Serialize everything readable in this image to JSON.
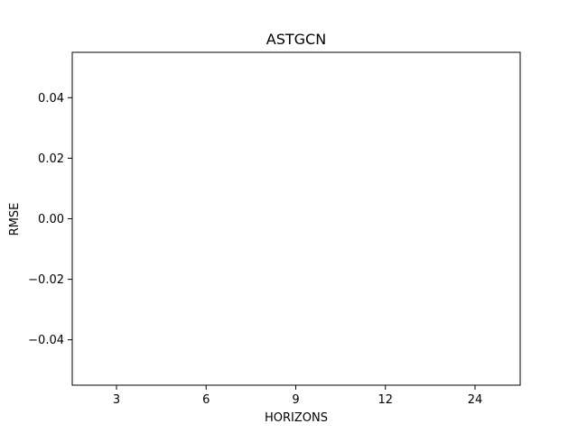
{
  "chart_data": {
    "type": "line",
    "title": "ASTGCN",
    "xlabel": "HORIZONS",
    "ylabel": "RMSE",
    "categories": [
      "3",
      "6",
      "9",
      "12",
      "24"
    ],
    "series": [],
    "ylim": [
      -0.055,
      0.055
    ],
    "yticks": [
      "−0.04",
      "−0.02",
      "0.00",
      "0.02",
      "0.04"
    ],
    "ytick_values": [
      -0.04,
      -0.02,
      0,
      0.02,
      0.04
    ],
    "grid": false,
    "legend": "none",
    "colors": {
      "axes": "#000000",
      "background": "#ffffff"
    }
  }
}
